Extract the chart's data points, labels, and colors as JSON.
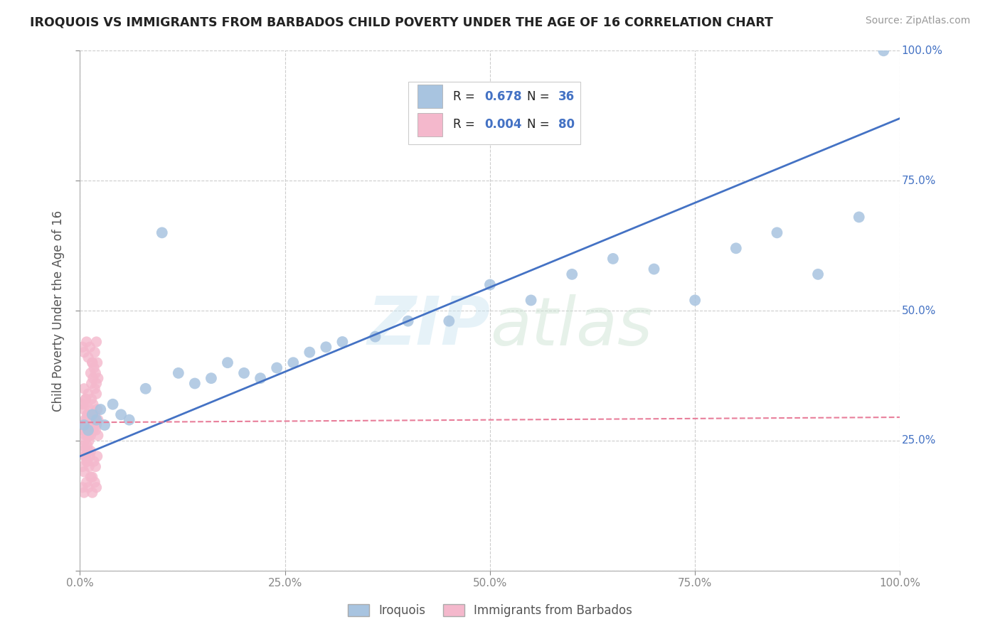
{
  "title": "IROQUOIS VS IMMIGRANTS FROM BARBADOS CHILD POVERTY UNDER THE AGE OF 16 CORRELATION CHART",
  "source": "Source: ZipAtlas.com",
  "ylabel": "Child Poverty Under the Age of 16",
  "xlim": [
    0,
    1.0
  ],
  "ylim": [
    0,
    1.0
  ],
  "xticks": [
    0.0,
    0.25,
    0.5,
    0.75,
    1.0
  ],
  "yticks": [
    0.0,
    0.25,
    0.5,
    0.75,
    1.0
  ],
  "xticklabels": [
    "0.0%",
    "25.0%",
    "50.0%",
    "75.0%",
    "100.0%"
  ],
  "yticklabels_right": [
    "",
    "25.0%",
    "50.0%",
    "75.0%",
    "100.0%"
  ],
  "iroquois_color": "#a8c4e0",
  "immigrants_color": "#f4b8cc",
  "line1_color": "#4472c4",
  "line2_color": "#e87e9a",
  "iroquois_x": [
    0.005,
    0.01,
    0.015,
    0.02,
    0.025,
    0.03,
    0.04,
    0.05,
    0.06,
    0.08,
    0.1,
    0.12,
    0.14,
    0.16,
    0.18,
    0.2,
    0.22,
    0.24,
    0.26,
    0.28,
    0.3,
    0.32,
    0.36,
    0.4,
    0.45,
    0.5,
    0.55,
    0.6,
    0.65,
    0.7,
    0.75,
    0.8,
    0.85,
    0.9,
    0.95,
    0.98
  ],
  "iroquois_y": [
    0.28,
    0.27,
    0.3,
    0.29,
    0.31,
    0.28,
    0.32,
    0.3,
    0.29,
    0.35,
    0.65,
    0.38,
    0.36,
    0.37,
    0.4,
    0.38,
    0.37,
    0.39,
    0.4,
    0.42,
    0.43,
    0.44,
    0.45,
    0.48,
    0.48,
    0.55,
    0.52,
    0.57,
    0.6,
    0.58,
    0.52,
    0.62,
    0.65,
    0.57,
    0.68,
    1.0
  ],
  "immigrants_x": [
    0.003,
    0.004,
    0.005,
    0.006,
    0.007,
    0.008,
    0.009,
    0.01,
    0.011,
    0.012,
    0.013,
    0.014,
    0.015,
    0.016,
    0.017,
    0.018,
    0.019,
    0.02,
    0.021,
    0.022,
    0.003,
    0.004,
    0.005,
    0.006,
    0.007,
    0.008,
    0.009,
    0.01,
    0.011,
    0.012,
    0.013,
    0.014,
    0.015,
    0.016,
    0.017,
    0.018,
    0.019,
    0.02,
    0.021,
    0.022,
    0.003,
    0.005,
    0.007,
    0.009,
    0.011,
    0.013,
    0.015,
    0.017,
    0.019,
    0.021,
    0.004,
    0.006,
    0.008,
    0.01,
    0.012,
    0.014,
    0.016,
    0.018,
    0.02,
    0.022,
    0.003,
    0.005,
    0.008,
    0.01,
    0.012,
    0.015,
    0.018,
    0.02,
    0.003,
    0.005,
    0.008,
    0.01,
    0.013,
    0.015,
    0.018,
    0.02,
    0.003,
    0.005,
    0.007,
    0.009
  ],
  "immigrants_y": [
    0.27,
    0.32,
    0.35,
    0.29,
    0.33,
    0.28,
    0.3,
    0.34,
    0.27,
    0.31,
    0.26,
    0.33,
    0.29,
    0.32,
    0.28,
    0.3,
    0.27,
    0.34,
    0.31,
    0.29,
    0.23,
    0.24,
    0.25,
    0.22,
    0.26,
    0.21,
    0.24,
    0.23,
    0.25,
    0.22,
    0.38,
    0.36,
    0.4,
    0.37,
    0.39,
    0.35,
    0.38,
    0.36,
    0.4,
    0.37,
    0.2,
    0.19,
    0.22,
    0.21,
    0.2,
    0.23,
    0.18,
    0.21,
    0.2,
    0.22,
    0.28,
    0.27,
    0.29,
    0.26,
    0.28,
    0.3,
    0.27,
    0.29,
    0.28,
    0.26,
    0.43,
    0.42,
    0.44,
    0.41,
    0.43,
    0.4,
    0.42,
    0.44,
    0.16,
    0.15,
    0.17,
    0.16,
    0.18,
    0.15,
    0.17,
    0.16,
    0.32,
    0.31,
    0.33,
    0.3
  ],
  "iro_line_x": [
    0.0,
    1.0
  ],
  "iro_line_y": [
    0.22,
    0.87
  ],
  "imm_line_x": [
    0.0,
    1.0
  ],
  "imm_line_y": [
    0.285,
    0.295
  ]
}
